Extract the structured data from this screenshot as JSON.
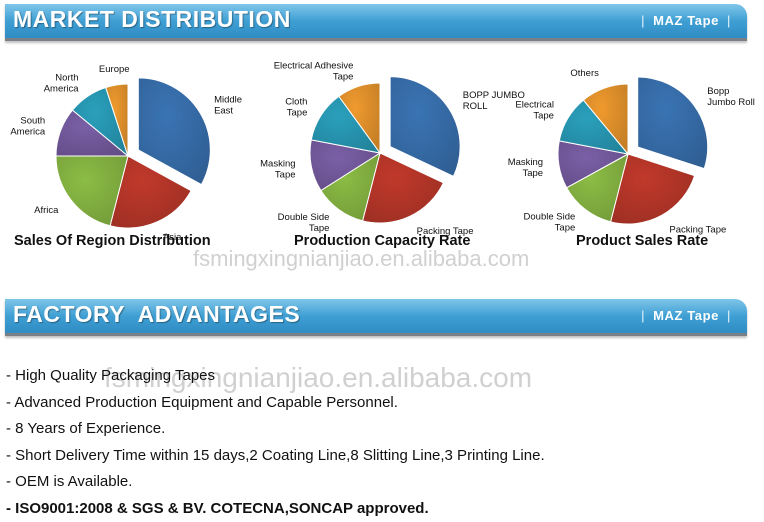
{
  "sections": {
    "market": {
      "title": "MARKET DISTRIBUTION",
      "brand": "MAZ Tape"
    },
    "factory": {
      "title": "FACTORY  ADVANTAGES",
      "brand": "MAZ Tape"
    }
  },
  "watermarks": {
    "upper": "fsmingxingnianjiao.en.alibaba.com",
    "lower": "fsmingxingnianjiao.en.alibaba.com"
  },
  "advantages": [
    "- High Quality Packaging Tapes",
    "- Advanced Production Equipment and Capable Personnel.",
    "- 8 Years of Experience.",
    "- Short Delivery Time within 15 days,2 Coating Line,8 Slitting Line,3 Printing Line.",
    "- OEM is Available.",
    "- ISO9001:2008 & SGS & BV. COTECNA,SONCAP approved."
  ],
  "chart_data": [
    {
      "type": "pie",
      "title": "Sales Of Region Distribution",
      "slices": [
        {
          "label": "Middle\nEast",
          "value": 33,
          "color": "#3a74b4",
          "exploded": true
        },
        {
          "label": "Asia",
          "value": 21,
          "color": "#c0392b"
        },
        {
          "label": "Africa",
          "value": 21,
          "color": "#8cbd45"
        },
        {
          "label": "South\nAmerica",
          "value": 11,
          "color": "#7a5fa6"
        },
        {
          "label": "North\nAmerica",
          "value": 9,
          "color": "#2aa0bd"
        },
        {
          "label": "Europe",
          "value": 5,
          "color": "#ef9a2e"
        }
      ]
    },
    {
      "type": "pie",
      "title": "Production Capacity Rate",
      "slices": [
        {
          "label": "BOPP JUMBO\nROLL",
          "value": 32,
          "color": "#3a74b4",
          "exploded": true
        },
        {
          "label": "Packing Tape",
          "value": 22,
          "color": "#c0392b"
        },
        {
          "label": "Double Side\nTape",
          "value": 12,
          "color": "#8cbd45"
        },
        {
          "label": "Masking\nTape",
          "value": 12,
          "color": "#7a5fa6"
        },
        {
          "label": "Cloth\nTape",
          "value": 12,
          "color": "#2aa0bd"
        },
        {
          "label": "Electrical Adhesive\nTape",
          "value": 10,
          "color": "#ef9a2e"
        }
      ]
    },
    {
      "type": "pie",
      "title": "Product Sales Rate",
      "slices": [
        {
          "label": "Bopp\nJumbo Roll",
          "value": 30,
          "color": "#3a74b4",
          "exploded": true
        },
        {
          "label": "Packing Tape",
          "value": 24,
          "color": "#c0392b"
        },
        {
          "label": "Double Side\nTape",
          "value": 13,
          "color": "#8cbd45"
        },
        {
          "label": "Masking\nTape",
          "value": 11,
          "color": "#7a5fa6"
        },
        {
          "label": "Electrical\nTape",
          "value": 11,
          "color": "#2aa0bd"
        },
        {
          "label": "Others",
          "value": 11,
          "color": "#ef9a2e"
        }
      ]
    }
  ]
}
